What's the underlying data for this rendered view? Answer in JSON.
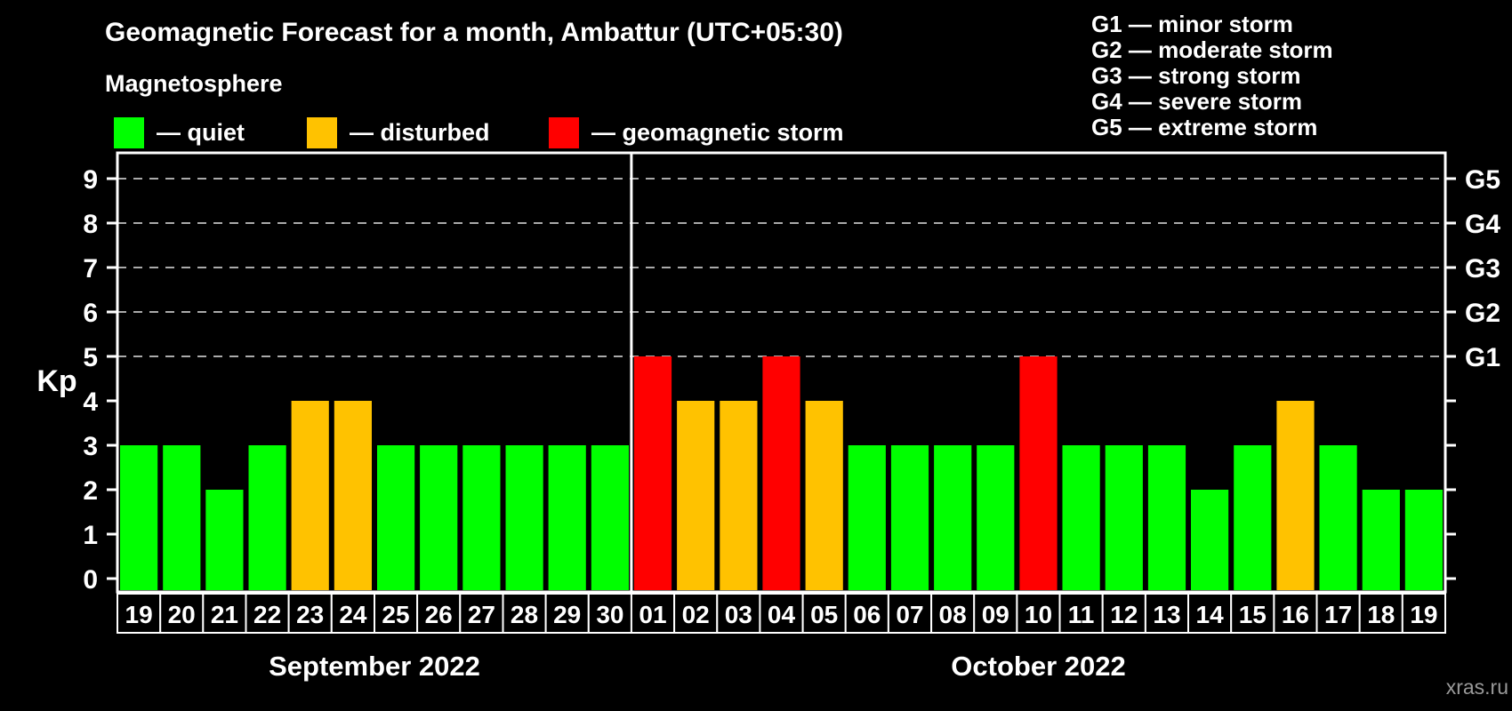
{
  "title": "Geomagnetic Forecast for a month, Ambattur (UTC+05:30)",
  "subtitle": "Magnetosphere",
  "legend": {
    "items": [
      {
        "key": "quiet",
        "label": "— quiet",
        "color": "#00ff00"
      },
      {
        "key": "disturbed",
        "label": "— disturbed",
        "color": "#ffc200"
      },
      {
        "key": "storm",
        "label": "— geomagnetic storm",
        "color": "#ff0000"
      }
    ]
  },
  "g_legend": {
    "items": [
      "G1 — minor storm",
      "G2 — moderate storm",
      "G3 — strong storm",
      "G4 — severe storm",
      "G5 — extreme storm"
    ]
  },
  "watermark": "xras.ru",
  "chart_data": {
    "type": "bar",
    "title": "Geomagnetic Forecast for a month, Ambattur (UTC+05:30)",
    "ylabel": "Kp",
    "ylim": [
      0,
      9.6
    ],
    "yticks": [
      0,
      1,
      2,
      3,
      4,
      5,
      6,
      7,
      8,
      9
    ],
    "gridlines": [
      5,
      6,
      7,
      8,
      9
    ],
    "grid_style": "dashed",
    "legend_position": "top",
    "right_axis": [
      {
        "kp": 5,
        "label": "G1"
      },
      {
        "kp": 6,
        "label": "G2"
      },
      {
        "kp": 7,
        "label": "G3"
      },
      {
        "kp": 8,
        "label": "G4"
      },
      {
        "kp": 9,
        "label": "G5"
      }
    ],
    "colors": {
      "quiet": "#00ff00",
      "disturbed": "#ffc200",
      "storm": "#ff0000"
    },
    "months": [
      {
        "label": "September 2022",
        "count": 12
      },
      {
        "label": "October 2022",
        "count": 19
      }
    ],
    "days": [
      "19",
      "20",
      "21",
      "22",
      "23",
      "24",
      "25",
      "26",
      "27",
      "28",
      "29",
      "30",
      "01",
      "02",
      "03",
      "04",
      "05",
      "06",
      "07",
      "08",
      "09",
      "10",
      "11",
      "12",
      "13",
      "14",
      "15",
      "16",
      "17",
      "18",
      "19"
    ],
    "values": [
      3,
      3,
      2,
      3,
      4,
      4,
      3,
      3,
      3,
      3,
      3,
      3,
      5,
      4,
      4,
      5,
      4,
      3,
      3,
      3,
      3,
      5,
      3,
      3,
      3,
      2,
      3,
      4,
      3,
      2,
      2
    ],
    "status": [
      "quiet",
      "quiet",
      "quiet",
      "quiet",
      "disturbed",
      "disturbed",
      "quiet",
      "quiet",
      "quiet",
      "quiet",
      "quiet",
      "quiet",
      "storm",
      "disturbed",
      "disturbed",
      "storm",
      "disturbed",
      "quiet",
      "quiet",
      "quiet",
      "quiet",
      "storm",
      "quiet",
      "quiet",
      "quiet",
      "quiet",
      "quiet",
      "disturbed",
      "quiet",
      "quiet",
      "quiet"
    ]
  }
}
